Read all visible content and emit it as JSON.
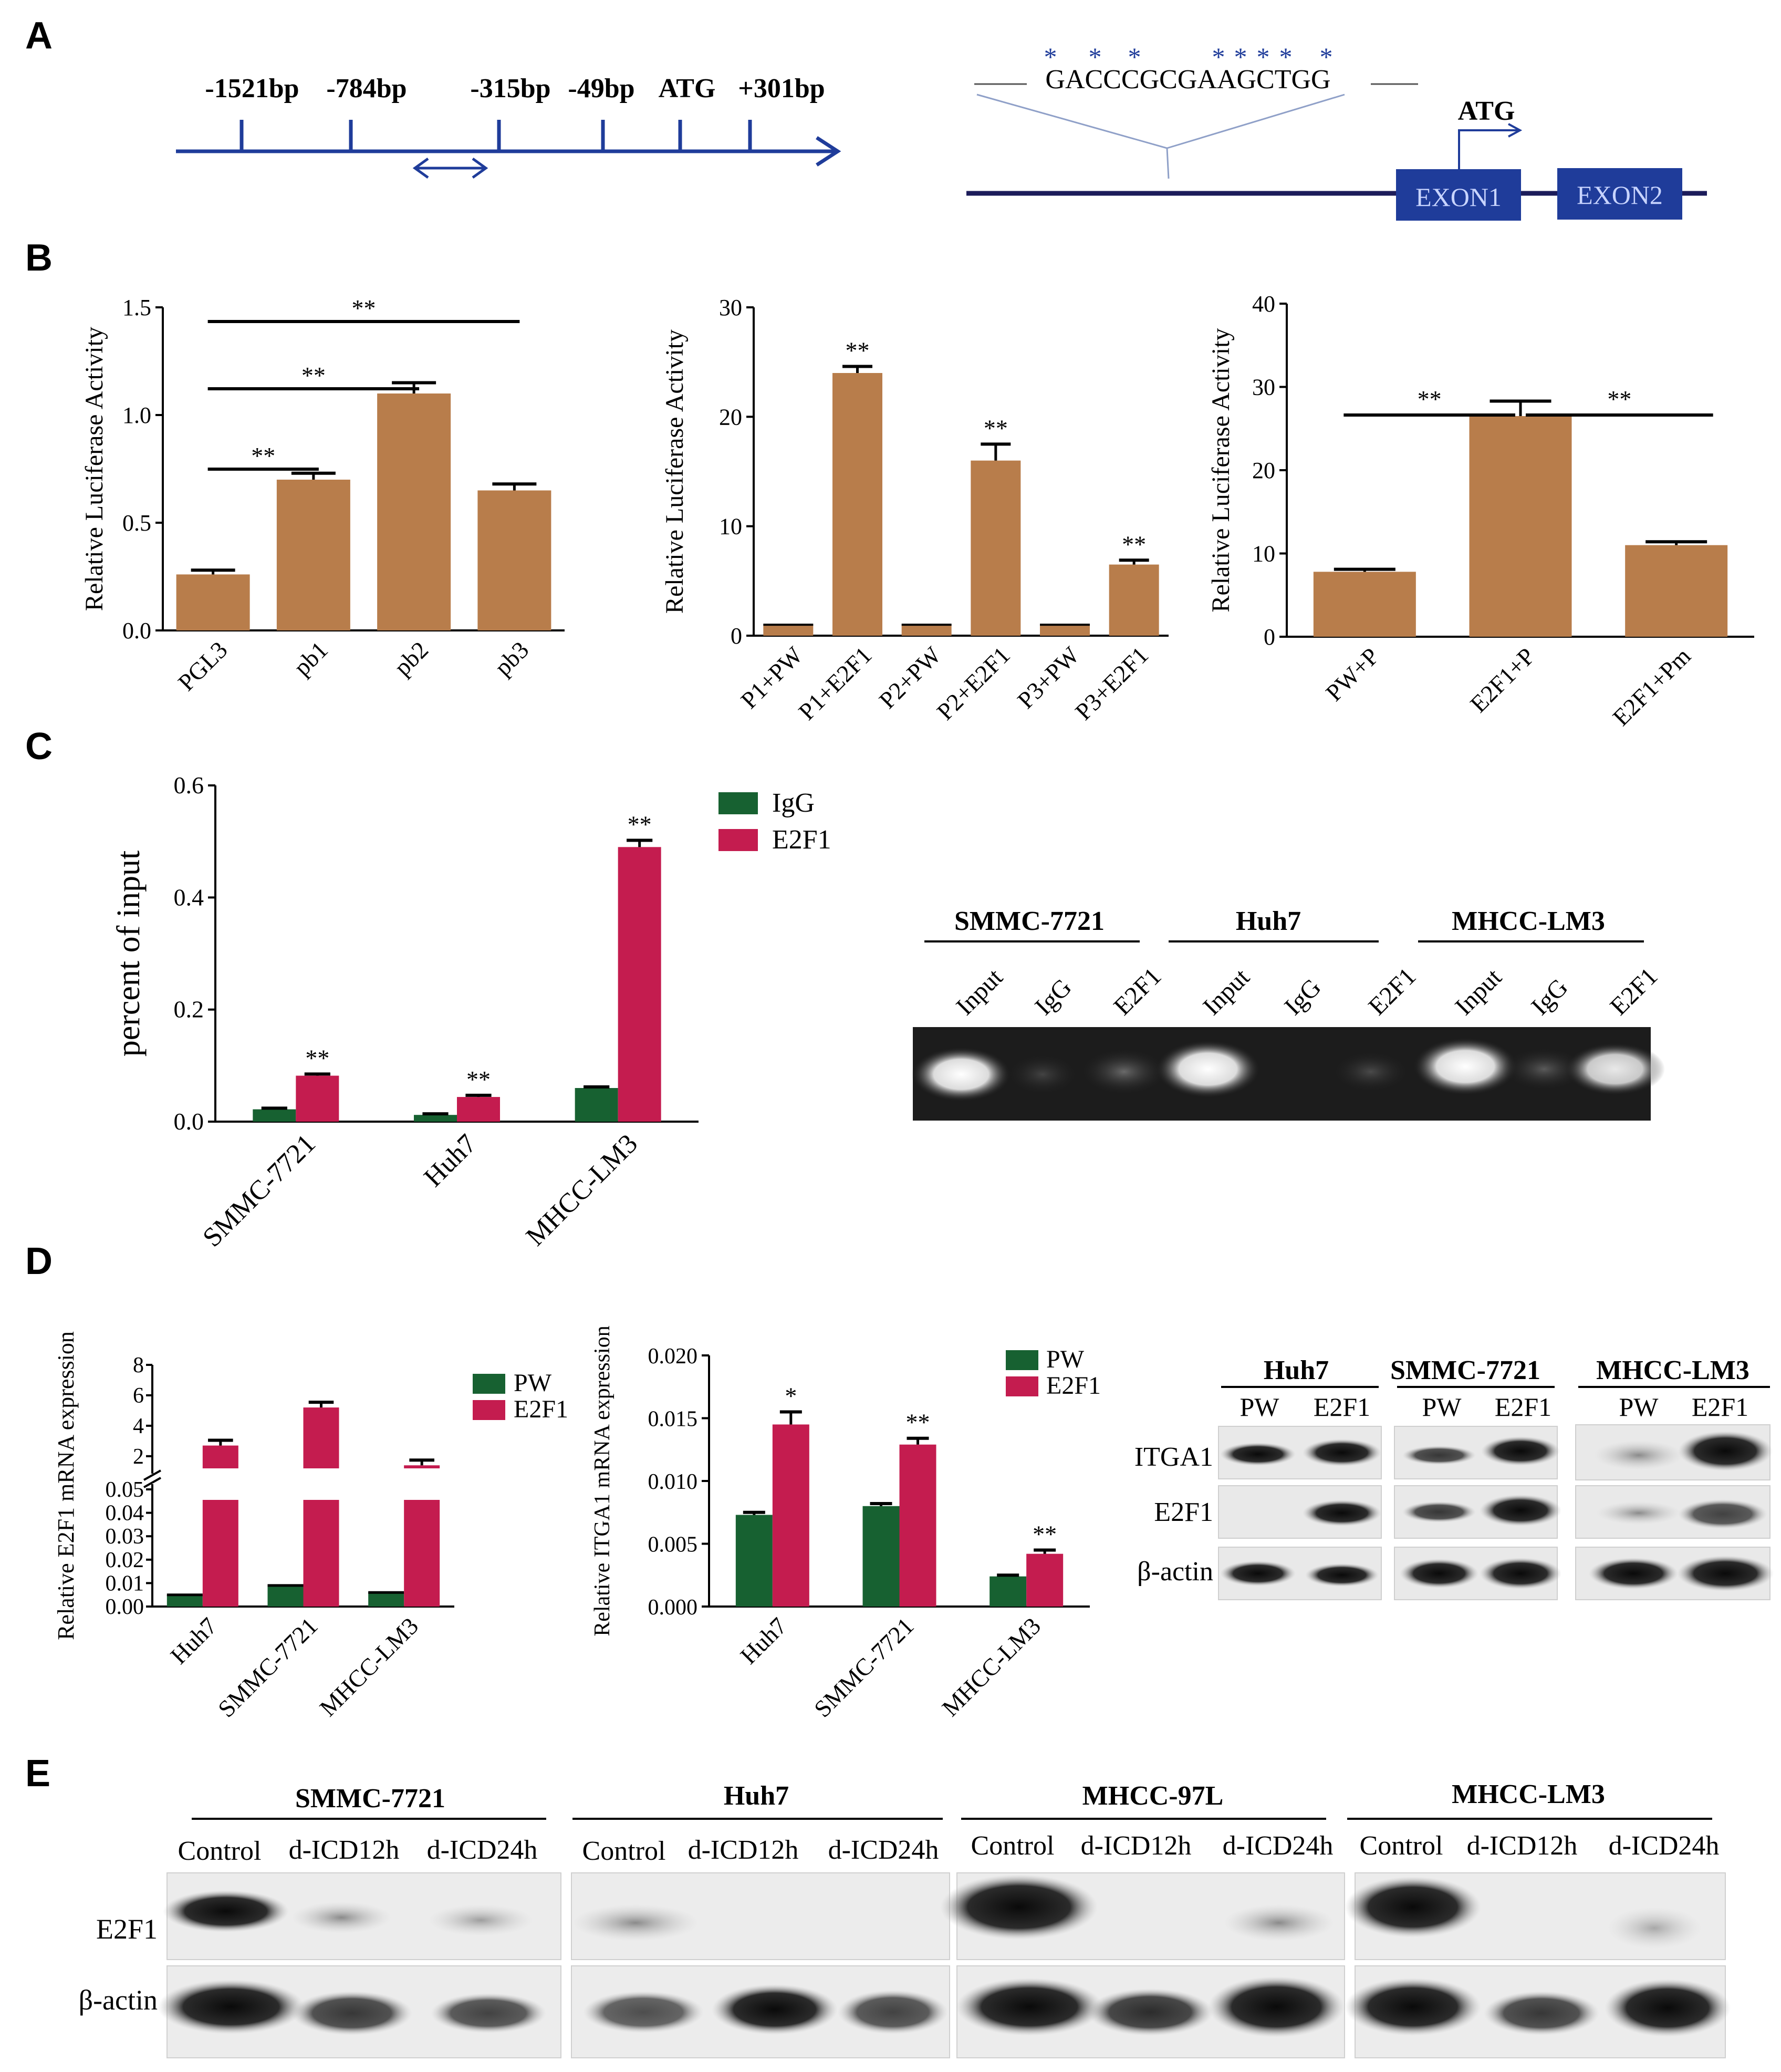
{
  "panel_labels": [
    "A",
    "B",
    "C",
    "D",
    "E"
  ],
  "panelA": {
    "positions": [
      "-1521bp",
      "-784bp",
      "-315bp",
      "-49bp",
      "ATG",
      "+301bp"
    ],
    "sequence": "GACCCGCGAAGCTGG",
    "atg_label": "ATG",
    "exon1": "EXON1",
    "exon2": "EXON2"
  },
  "panelC": {
    "gel_groups": [
      "SMMC-7721",
      "Huh7",
      "MHCC-LM3"
    ],
    "gel_lanes": [
      "Input",
      "IgG",
      "E2F1"
    ]
  },
  "panelD": {
    "blot_groups": [
      "Huh7",
      "SMMC-7721",
      "MHCC-LM3"
    ],
    "blot_lanes": [
      "PW",
      "E2F1"
    ],
    "blot_rows": [
      "ITGA1",
      "E2F1",
      "β-actin"
    ]
  },
  "panelE": {
    "groups": [
      "SMMC-7721",
      "Huh7",
      "MHCC-97L",
      "MHCC-LM3"
    ],
    "lanes": [
      "Control",
      "d-ICD12h",
      "d-ICD24h"
    ],
    "rows": [
      "E2F1",
      "β-actin"
    ]
  },
  "colors": {
    "brown": "#B87D4B",
    "green": "#176131",
    "crimson": "#C41C4F",
    "blue": "#1a3a9a",
    "navy": "#1f2b8f"
  },
  "chart_data": [
    {
      "id": "B1",
      "type": "bar",
      "categories": [
        "PGL3",
        "pb1",
        "pb2",
        "pb3"
      ],
      "values": [
        0.26,
        0.7,
        1.1,
        0.65
      ],
      "errors": [
        0.02,
        0.03,
        0.05,
        0.03
      ],
      "ylim": [
        0,
        1.5
      ],
      "yticks": [
        "0.0",
        "0.5",
        "1.0",
        "1.5"
      ],
      "ylabel": "Relative Luciferase Activity",
      "sig": [
        "**",
        "**",
        "**"
      ]
    },
    {
      "id": "B2",
      "type": "bar",
      "categories": [
        "P1+PW",
        "P1+E2F1",
        "P2+PW",
        "P2+E2F1",
        "P3+PW",
        "P3+E2F1"
      ],
      "values": [
        1,
        24,
        1,
        16,
        1,
        6.5
      ],
      "errors": [
        0,
        0.6,
        0,
        1.5,
        0,
        0.4
      ],
      "ylim": [
        0,
        30
      ],
      "yticks": [
        "0",
        "10",
        "20",
        "30"
      ],
      "ylabel": "Relative Luciferase Activity",
      "sig": [
        "**",
        "**",
        "**"
      ]
    },
    {
      "id": "B3",
      "type": "bar",
      "categories": [
        "PW+P",
        "E2F1+P",
        "E2F1+Pm"
      ],
      "values": [
        7.8,
        26.5,
        11
      ],
      "errors": [
        0.3,
        1.8,
        0.4
      ],
      "ylim": [
        0,
        40
      ],
      "yticks": [
        "0",
        "10",
        "20",
        "30",
        "40"
      ],
      "ylabel": "Relative Luciferase Activity",
      "sig": [
        "**",
        "**"
      ]
    },
    {
      "id": "C",
      "type": "bar",
      "categories": [
        "SMMC-7721",
        "Huh7",
        "MHCC-LM3"
      ],
      "series": [
        {
          "name": "IgG",
          "values": [
            0.022,
            0.012,
            0.06
          ]
        },
        {
          "name": "E2F1",
          "values": [
            0.082,
            0.044,
            0.49
          ]
        }
      ],
      "errors": [
        [
          0.002,
          0.002,
          0.002
        ],
        [
          0.003,
          0.003,
          0.012
        ]
      ],
      "ylim": [
        0,
        0.6
      ],
      "yticks": [
        "0.0",
        "0.2",
        "0.4",
        "0.6"
      ],
      "ylabel": "percent of input",
      "sig": [
        "**",
        "**",
        "**"
      ]
    },
    {
      "id": "D1",
      "type": "bar",
      "categories": [
        "Huh7",
        "SMMC-7721",
        "MHCC-LM3"
      ],
      "series": [
        {
          "name": "PW",
          "values": [
            0.005,
            0.009,
            0.006
          ]
        },
        {
          "name": "E2F1",
          "values": [
            2.7,
            5.2,
            1.4
          ]
        }
      ],
      "yticks_lower": [
        "0.00",
        "0.01",
        "0.02",
        "0.03",
        "0.04",
        "0.05"
      ],
      "yticks_upper": [
        "2",
        "4",
        "6",
        "8"
      ],
      "ylabel": "Relative E2F1 mRNA expression"
    },
    {
      "id": "D2",
      "type": "bar",
      "categories": [
        "Huh7",
        "SMMC-7721",
        "MHCC-LM3"
      ],
      "series": [
        {
          "name": "PW",
          "values": [
            0.0073,
            0.008,
            0.0024
          ]
        },
        {
          "name": "E2F1",
          "values": [
            0.0145,
            0.0129,
            0.0042
          ]
        }
      ],
      "errors": [
        [
          0.0002,
          0.0002,
          0.0001
        ],
        [
          0.001,
          0.0005,
          0.0003
        ]
      ],
      "ylim": [
        0,
        0.02
      ],
      "yticks": [
        "0.000",
        "0.005",
        "0.010",
        "0.015",
        "0.020"
      ],
      "ylabel": "Relative ITGA1 mRNA expression",
      "sig": [
        "*",
        "**",
        "**"
      ]
    }
  ]
}
